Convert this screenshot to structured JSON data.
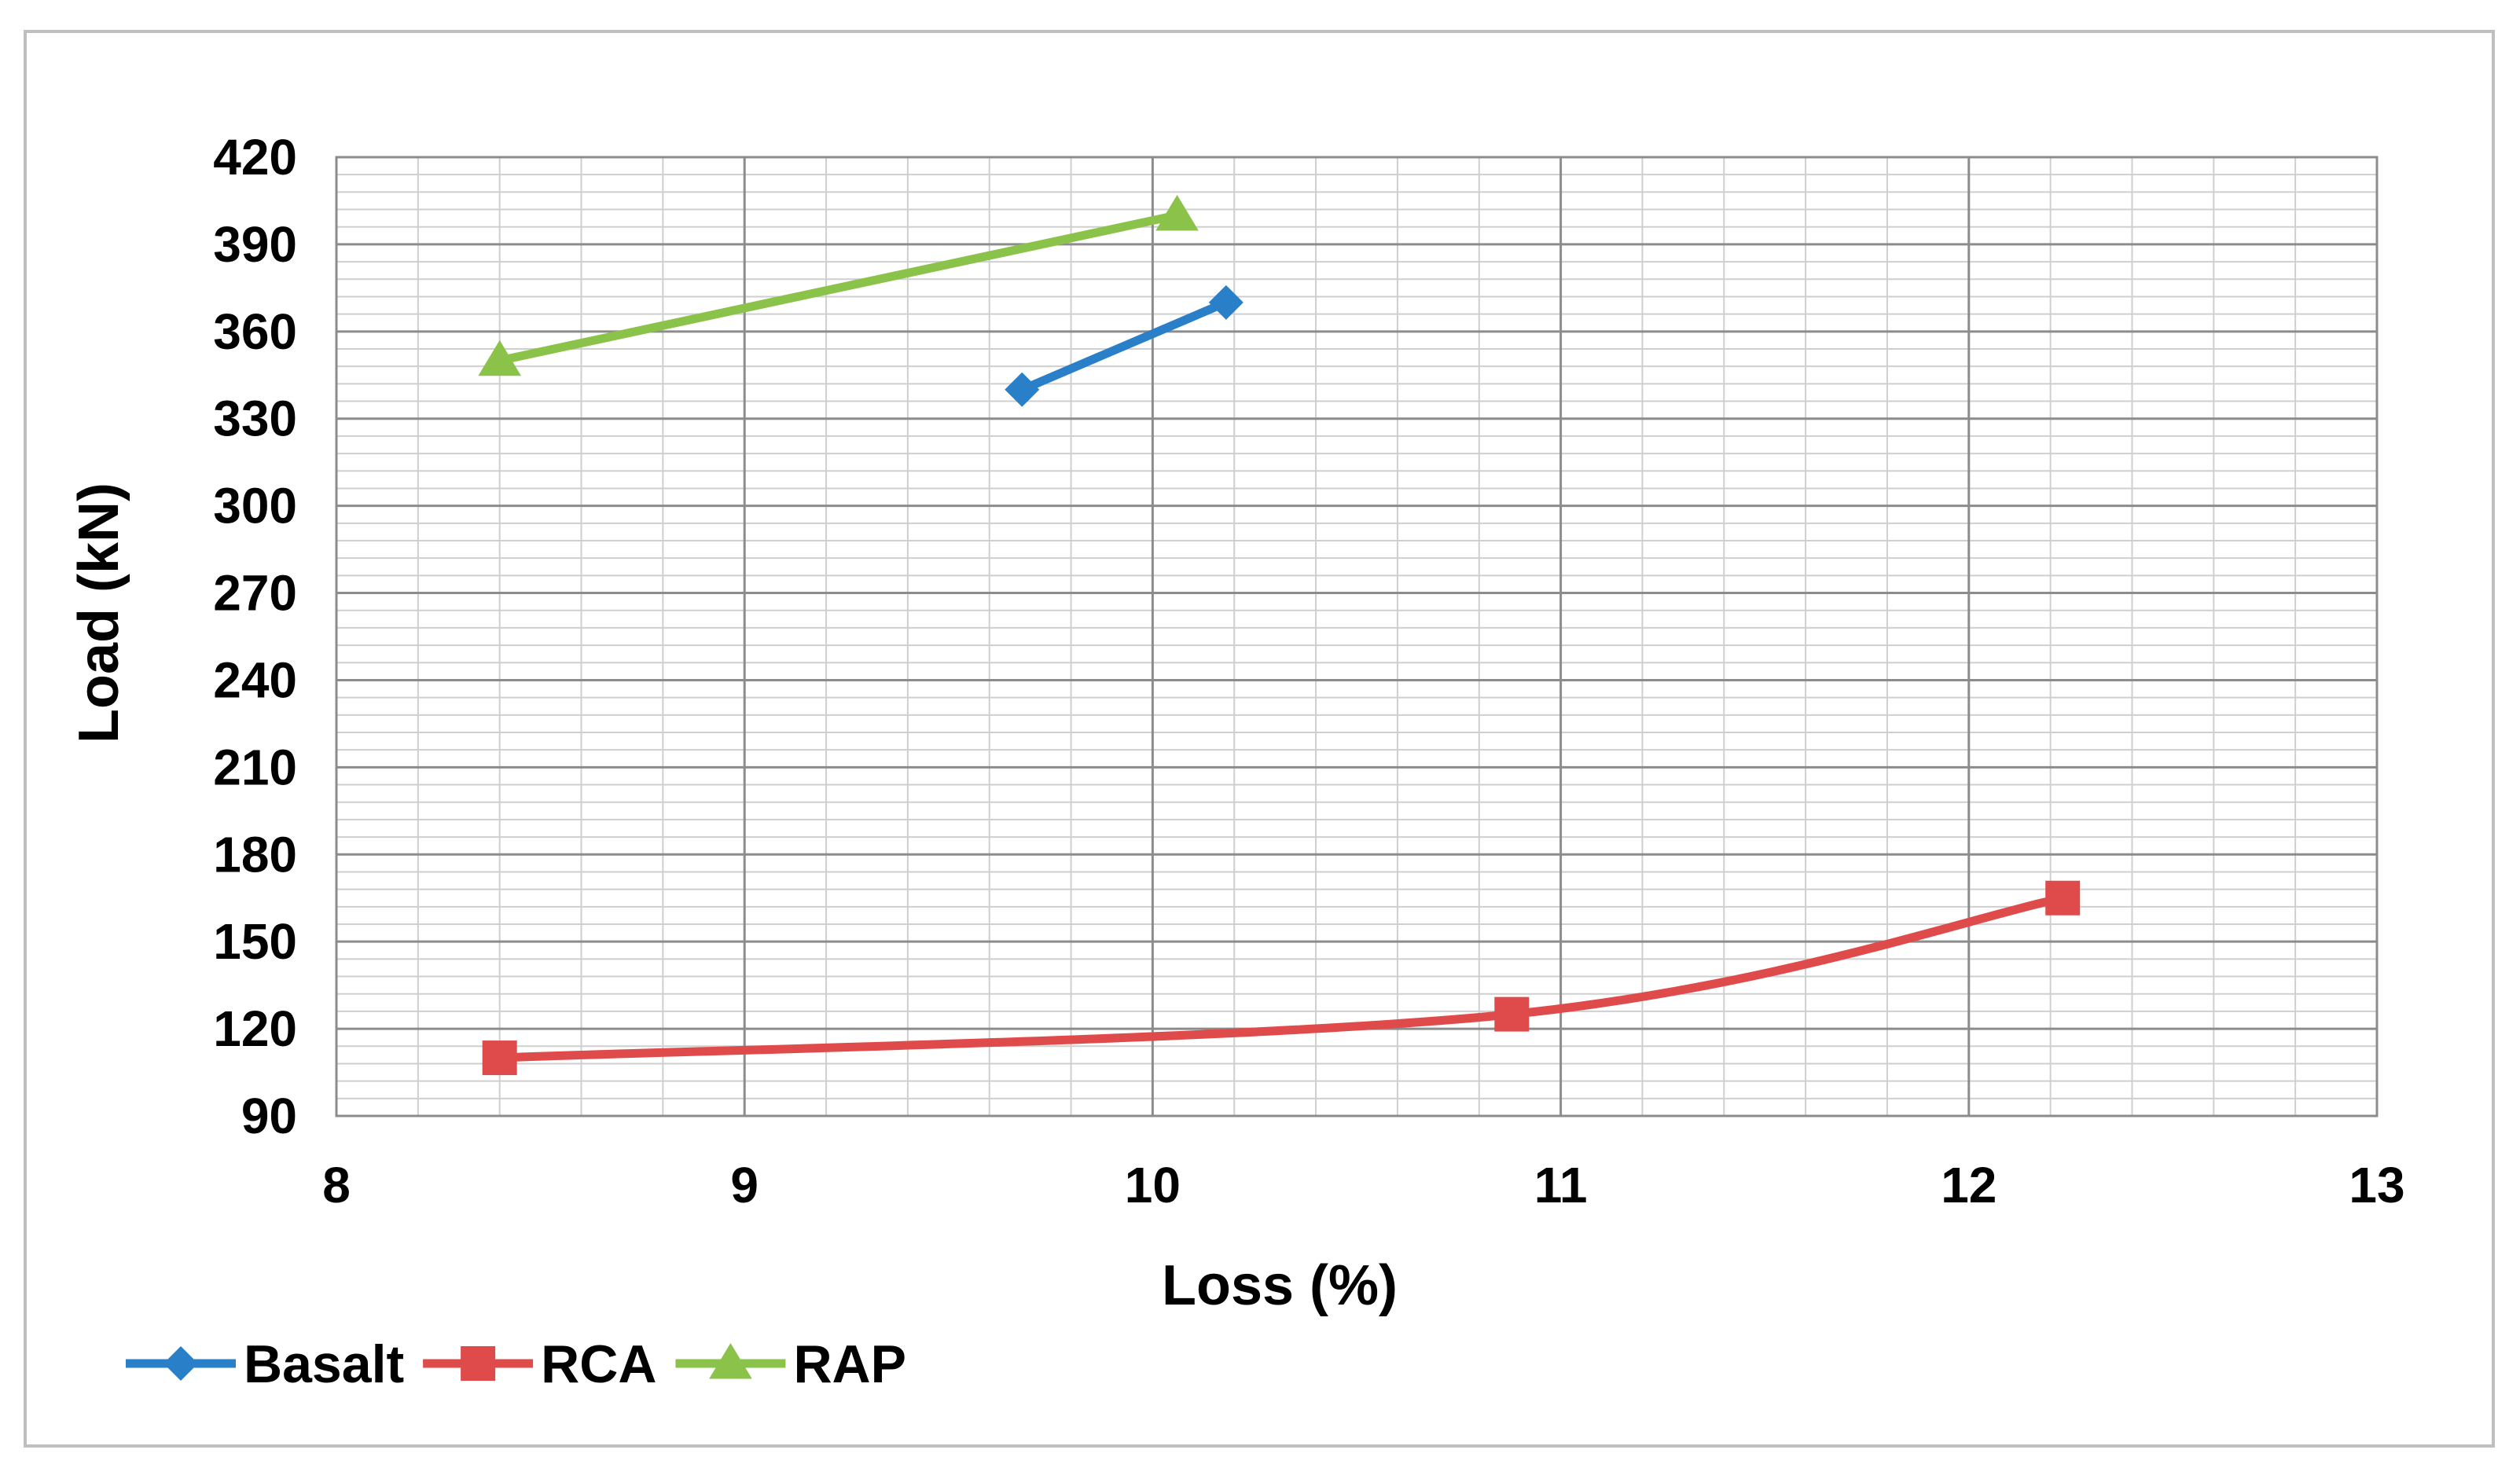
{
  "chart_data": {
    "type": "line",
    "title": "",
    "xlabel": "Loss (%)",
    "ylabel": "Load (kN)",
    "xlim": [
      8,
      13
    ],
    "ylim": [
      90,
      420
    ],
    "xticks": [
      "8",
      "9",
      "10",
      "11",
      "12",
      "13"
    ],
    "yticks": [
      "90",
      "120",
      "150",
      "180",
      "210",
      "240",
      "270",
      "300",
      "330",
      "360",
      "390",
      "420"
    ],
    "grid": true,
    "legend_position": "bottom-left",
    "series": [
      {
        "name": "Basalt",
        "color": "#2A7FC9",
        "marker": "diamond",
        "smooth": false,
        "x": [
          9.68,
          10.18
        ],
        "y": [
          340,
          370
        ]
      },
      {
        "name": "RCA",
        "color": "#DF4B4B",
        "marker": "square",
        "smooth": true,
        "x": [
          8.4,
          10.88,
          12.23
        ],
        "y": [
          110,
          125,
          165
        ]
      },
      {
        "name": "RAP",
        "color": "#8BC34A",
        "marker": "triangle",
        "smooth": false,
        "x": [
          8.4,
          10.06
        ],
        "y": [
          350,
          400
        ]
      }
    ]
  }
}
